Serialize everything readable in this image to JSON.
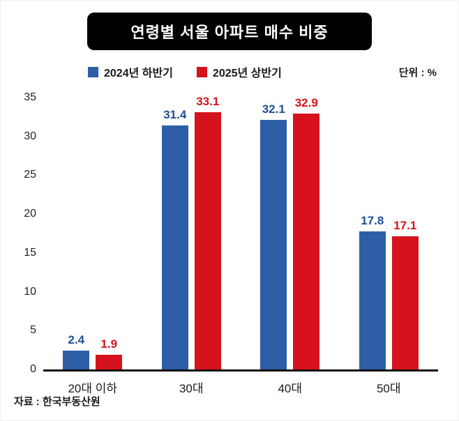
{
  "title": "연령별 서울 아파트 매수 비중",
  "unit_label": "단위 : %",
  "source": "자료 : 한국부동산원",
  "legend": [
    {
      "label": "2024년 하반기",
      "color": "#2e5fa6"
    },
    {
      "label": "2025년 상반기",
      "color": "#d6131c"
    }
  ],
  "chart_data": {
    "type": "bar",
    "title": "연령별 서울 아파트 매수 비중",
    "unit": "%",
    "categories": [
      "20대 이하",
      "30대",
      "40대",
      "50대"
    ],
    "series": [
      {
        "name": "2024년 하반기",
        "color": "#2e5fa6",
        "label_color": "#1d4f96",
        "values": [
          2.4,
          31.4,
          32.1,
          17.8
        ]
      },
      {
        "name": "2025년 상반기",
        "color": "#d6131c",
        "label_color": "#d6131c",
        "values": [
          1.9,
          33.1,
          32.9,
          17.1
        ]
      }
    ],
    "xlabel": "",
    "ylabel": "",
    "ylim": [
      0,
      35
    ],
    "yticks": [
      0,
      5,
      10,
      15,
      20,
      25,
      30,
      35
    ],
    "grid": false,
    "legend_position": "top"
  }
}
